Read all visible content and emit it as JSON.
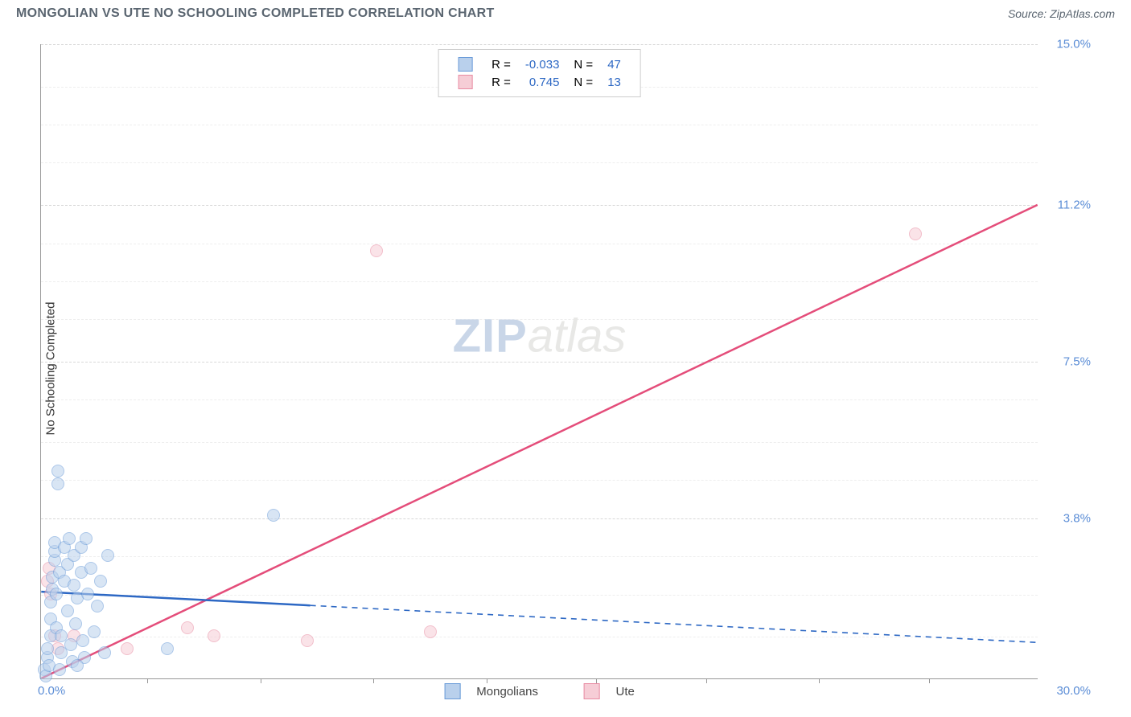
{
  "header": {
    "title": "MONGOLIAN VS UTE NO SCHOOLING COMPLETED CORRELATION CHART",
    "source": "Source: ZipAtlas.com"
  },
  "chart": {
    "y_axis_label": "No Schooling Completed",
    "xlim": [
      0,
      30
    ],
    "ylim": [
      0,
      15
    ],
    "x_ticks": [
      0,
      30
    ],
    "x_tick_labels": [
      "0.0%",
      "30.0%"
    ],
    "x_minor_ticks": [
      3.2,
      6.6,
      10.0,
      13.4,
      16.7,
      20.0,
      23.4,
      26.7
    ],
    "y_ticks": [
      3.8,
      7.5,
      11.2,
      15.0
    ],
    "y_tick_labels": [
      "3.8%",
      "7.5%",
      "11.2%",
      "15.0%"
    ],
    "y_minor_gridlines": [
      1.0,
      2.0,
      2.9,
      4.7,
      5.6,
      6.6,
      8.5,
      9.4,
      10.3,
      12.2,
      13.1,
      14.0
    ],
    "background_color": "#ffffff",
    "grid_color": "#d8d8d8",
    "axis_text_color": "#5b8dd6",
    "marker_radius": 8,
    "marker_opacity": 0.55,
    "watermark": {
      "zip": "ZIP",
      "atlas": "atlas"
    }
  },
  "series": {
    "mongolians": {
      "label": "Mongolians",
      "fill": "#b9d0ec",
      "stroke": "#6a9bd8",
      "line_color": "#2d68c4",
      "r_value": "-0.033",
      "n_value": "47",
      "trend": {
        "x1": 0,
        "y1": 2.05,
        "x2": 30,
        "y2": 0.85,
        "solid_until_x": 8.1
      },
      "points": [
        [
          0.1,
          0.2
        ],
        [
          0.15,
          0.05
        ],
        [
          0.2,
          0.5
        ],
        [
          0.2,
          0.7
        ],
        [
          0.25,
          0.3
        ],
        [
          0.3,
          1.0
        ],
        [
          0.3,
          1.4
        ],
        [
          0.3,
          1.8
        ],
        [
          0.35,
          2.1
        ],
        [
          0.35,
          2.4
        ],
        [
          0.4,
          2.8
        ],
        [
          0.4,
          3.0
        ],
        [
          0.4,
          3.2
        ],
        [
          0.45,
          2.0
        ],
        [
          0.45,
          1.2
        ],
        [
          0.5,
          4.6
        ],
        [
          0.5,
          4.9
        ],
        [
          0.55,
          2.5
        ],
        [
          0.6,
          1.0
        ],
        [
          0.6,
          0.6
        ],
        [
          0.7,
          3.1
        ],
        [
          0.7,
          2.3
        ],
        [
          0.8,
          2.7
        ],
        [
          0.8,
          1.6
        ],
        [
          0.85,
          3.3
        ],
        [
          0.9,
          0.8
        ],
        [
          0.95,
          0.4
        ],
        [
          1.0,
          2.2
        ],
        [
          1.0,
          2.9
        ],
        [
          1.05,
          1.3
        ],
        [
          1.1,
          1.9
        ],
        [
          1.2,
          2.5
        ],
        [
          1.2,
          3.1
        ],
        [
          1.25,
          0.9
        ],
        [
          1.3,
          0.5
        ],
        [
          1.35,
          3.3
        ],
        [
          1.4,
          2.0
        ],
        [
          1.5,
          2.6
        ],
        [
          1.6,
          1.1
        ],
        [
          1.7,
          1.7
        ],
        [
          1.8,
          2.3
        ],
        [
          1.9,
          0.6
        ],
        [
          2.0,
          2.9
        ],
        [
          1.1,
          0.3
        ],
        [
          0.55,
          0.2
        ],
        [
          3.8,
          0.7
        ],
        [
          7.0,
          3.85
        ]
      ]
    },
    "ute": {
      "label": "Ute",
      "fill": "#f6cdd6",
      "stroke": "#e88ba2",
      "line_color": "#e44d7a",
      "r_value": "0.745",
      "n_value": "13",
      "trend": {
        "x1": 0,
        "y1": 0.0,
        "x2": 30,
        "y2": 11.2,
        "solid_until_x": 30
      },
      "points": [
        [
          0.2,
          2.3
        ],
        [
          0.25,
          2.6
        ],
        [
          0.3,
          2.0
        ],
        [
          0.4,
          1.0
        ],
        [
          0.5,
          0.7
        ],
        [
          1.0,
          1.0
        ],
        [
          2.6,
          0.7
        ],
        [
          4.4,
          1.2
        ],
        [
          5.2,
          1.0
        ],
        [
          8.0,
          0.9
        ],
        [
          10.1,
          10.1
        ],
        [
          11.7,
          1.1
        ],
        [
          26.3,
          10.5
        ]
      ]
    }
  },
  "legend_top": {
    "r_label": "R =",
    "n_label": "N ="
  }
}
